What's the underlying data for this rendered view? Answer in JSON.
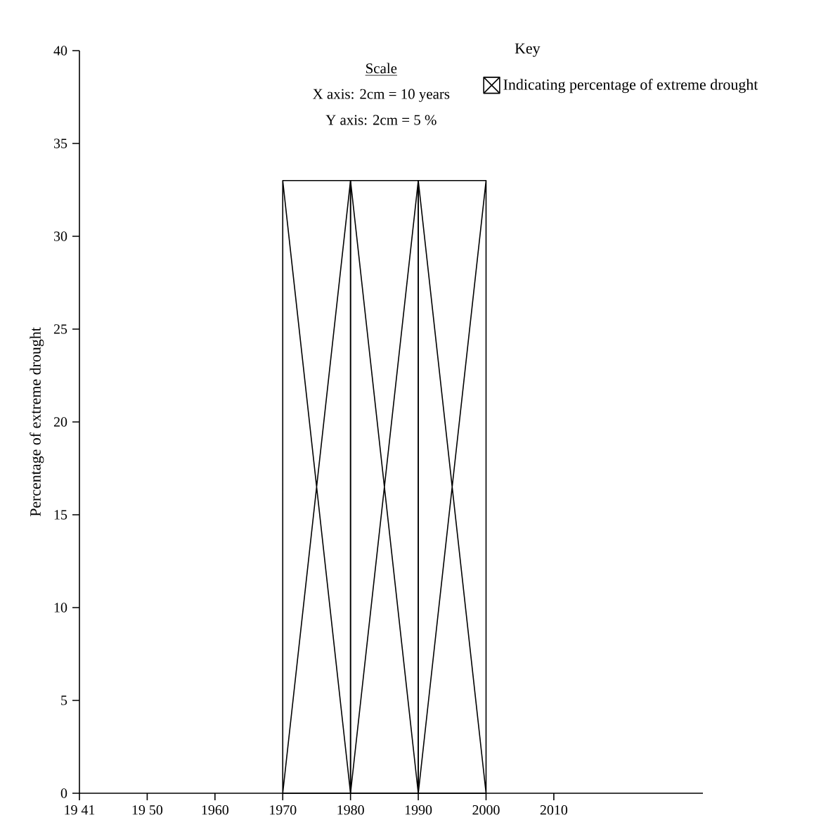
{
  "chart_data": {
    "type": "histogram",
    "ylabel": "Percentage of extreme drought",
    "legend_title": "Key",
    "bins": [
      1970,
      1980,
      1990,
      2000
    ],
    "series": [
      {
        "name": "Indicating percentage of    extreme drought",
        "color": "#000000",
        "values": [
          33,
          33,
          33
        ]
      }
    ],
    "xlim": [
      1940,
      2032
    ],
    "xticks": [
      {
        "value": 1940,
        "label": "19 41"
      },
      {
        "value": 1950,
        "label": "19 50"
      },
      1960,
      1970,
      1980,
      1990,
      2000,
      2010
    ],
    "ylim": [
      0,
      40
    ],
    "yticks": [
      0,
      5,
      10,
      15,
      20,
      25,
      30,
      35,
      40
    ],
    "annotations": [
      "Scale",
      "X axis: 2cm = 10 years",
      "Y axis: 2cm =  5 %"
    ],
    "legend": "top right",
    "grid": false
  }
}
